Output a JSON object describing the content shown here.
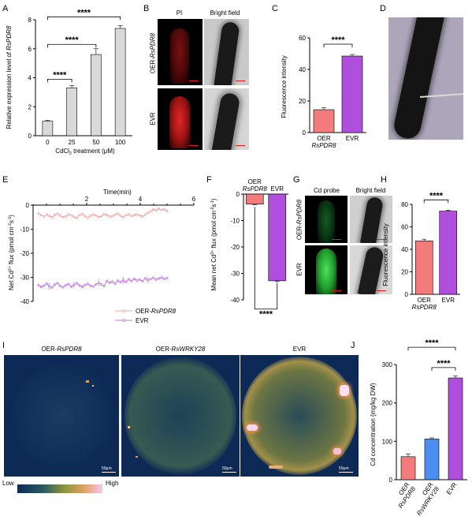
{
  "panel_letters": [
    "A",
    "B",
    "C",
    "D",
    "E",
    "F",
    "G",
    "H",
    "I",
    "J"
  ],
  "colors": {
    "oer": "#f47b7b",
    "evr": "#b04fdd",
    "wrky": "#4c8df0",
    "bar_gray": "#d9d9d9",
    "e_oer": "#f08a8a",
    "e_evr": "#b04fdd",
    "heat_bg": "#0e2d5a"
  },
  "significance": "****",
  "panel_b": {
    "col_labels": [
      "PI",
      "Bright field"
    ],
    "row_labels": [
      "OER-RsPDR8",
      "EVR"
    ]
  },
  "panel_g": {
    "col_labels": [
      "Cd probe",
      "Bright field"
    ],
    "row_labels": [
      "OER-RsPDR8",
      "EVR"
    ]
  },
  "panel_i": {
    "col_labels": [
      "OER-RsPDR8",
      "OER-RsWRKY28",
      "EVR"
    ],
    "scale_label": "50μm",
    "colorbar_low": "Low",
    "colorbar_high": "High"
  },
  "chart_data": [
    {
      "panel": "A",
      "type": "bar",
      "categories": [
        "0",
        "25",
        "50",
        "100"
      ],
      "values": [
        1.0,
        3.3,
        5.6,
        7.4
      ],
      "errors": [
        0.05,
        0.15,
        0.4,
        0.2
      ],
      "xlabel": "CdCl2 treatment (μM)",
      "ylabel": "Relative expression level of RsPDR8",
      "ylim": [
        0,
        8
      ],
      "yticks": [
        "0",
        "2",
        "4",
        "6",
        "8"
      ],
      "significance": [
        "****",
        "****",
        "****"
      ]
    },
    {
      "panel": "C",
      "type": "bar",
      "categories": [
        "OER RsPDR8",
        "EVR"
      ],
      "values": [
        14.5,
        48.5
      ],
      "errors": [
        1.2,
        1.0
      ],
      "ylabel": "Fluorescence intensity",
      "ylim": [
        0,
        60
      ],
      "yticks": [
        "0",
        "20",
        "40",
        "60"
      ],
      "significance": [
        "****"
      ]
    },
    {
      "panel": "E",
      "type": "line",
      "xlabel": "Time(min)",
      "ylabel": "Net Cd2+ flux (pmol cm-2s-1)",
      "xlim": [
        0,
        6
      ],
      "ylim": [
        -40,
        0
      ],
      "xticks": [
        "2",
        "4",
        "6"
      ],
      "yticks": [
        "0",
        "-10",
        "-20",
        "-30",
        "-40"
      ],
      "series": [
        {
          "name": "OER-RsPDR8",
          "values": [
            -3.5,
            -4.2,
            -4.8,
            -3.9,
            -4.5,
            -5.1,
            -4.0,
            -3.6,
            -4.4,
            -5.0,
            -4.7,
            -3.8,
            -4.2,
            -4.9,
            -5.3,
            -4.1,
            -3.7,
            -4.6,
            -5.2,
            -4.4,
            -3.9,
            -4.3,
            -5.0,
            -4.6,
            -3.8,
            -4.1,
            -4.8,
            -4.5,
            -4.0,
            -3.6,
            -4.4,
            -4.9,
            -4.2,
            -3.8,
            -4.5,
            -4.1,
            -3.9,
            -4.3,
            -4.7,
            -4.0,
            -3.2,
            -2.6,
            -1.8,
            -2.2,
            -1.5,
            -2.0,
            -1.7,
            -2.4
          ]
        },
        {
          "name": "EVR",
          "values": [
            -33.2,
            -34.0,
            -33.5,
            -32.6,
            -33.8,
            -34.2,
            -33.0,
            -32.4,
            -33.6,
            -34.1,
            -33.3,
            -32.8,
            -33.9,
            -33.1,
            -32.5,
            -33.4,
            -34.0,
            -33.2,
            -32.7,
            -33.5,
            -33.8,
            -32.9,
            -32.3,
            -33.0,
            -33.6,
            -31.5,
            -32.2,
            -31.8,
            -32.6,
            -31.4,
            -32.0,
            -31.2,
            -31.9,
            -30.8,
            -31.5,
            -30.6,
            -31.3,
            -30.9,
            -31.6,
            -30.4,
            -31.1,
            -30.7,
            -30.2,
            -30.9,
            -30.5,
            -30.1,
            -30.7,
            -30.3
          ]
        }
      ]
    },
    {
      "panel": "F",
      "type": "bar",
      "categories": [
        "OER RsPDR8",
        "EVR"
      ],
      "values": [
        -3.8,
        -32.8
      ],
      "errors": [
        0.3,
        0.3
      ],
      "ylabel": "Mean net Cd2+ flux (pmol cm-2s-1)",
      "ylim": [
        -40,
        0
      ],
      "yticks": [
        "0",
        "-10",
        "-20",
        "-30",
        "-40"
      ],
      "significance": [
        "****"
      ]
    },
    {
      "panel": "H",
      "type": "bar",
      "categories": [
        "OER RsPDR8",
        "EVR"
      ],
      "values": [
        47.5,
        74.0
      ],
      "errors": [
        1.5,
        0.8
      ],
      "ylabel": "Fluorescence intensity",
      "ylim": [
        0,
        80
      ],
      "yticks": [
        "0",
        "20",
        "40",
        "60",
        "80"
      ],
      "significance": [
        "****"
      ]
    },
    {
      "panel": "J",
      "type": "bar",
      "categories": [
        "OER RsPDR8",
        "OER RsWRKY28",
        "EVR"
      ],
      "values": [
        60,
        106,
        265
      ],
      "errors": [
        7,
        3,
        5
      ],
      "ylabel": "Cd concentration (mg/kg DW)",
      "ylim": [
        0,
        300
      ],
      "yticks": [
        "0",
        "100",
        "200",
        "300"
      ],
      "significance": [
        "****",
        "****"
      ]
    }
  ]
}
